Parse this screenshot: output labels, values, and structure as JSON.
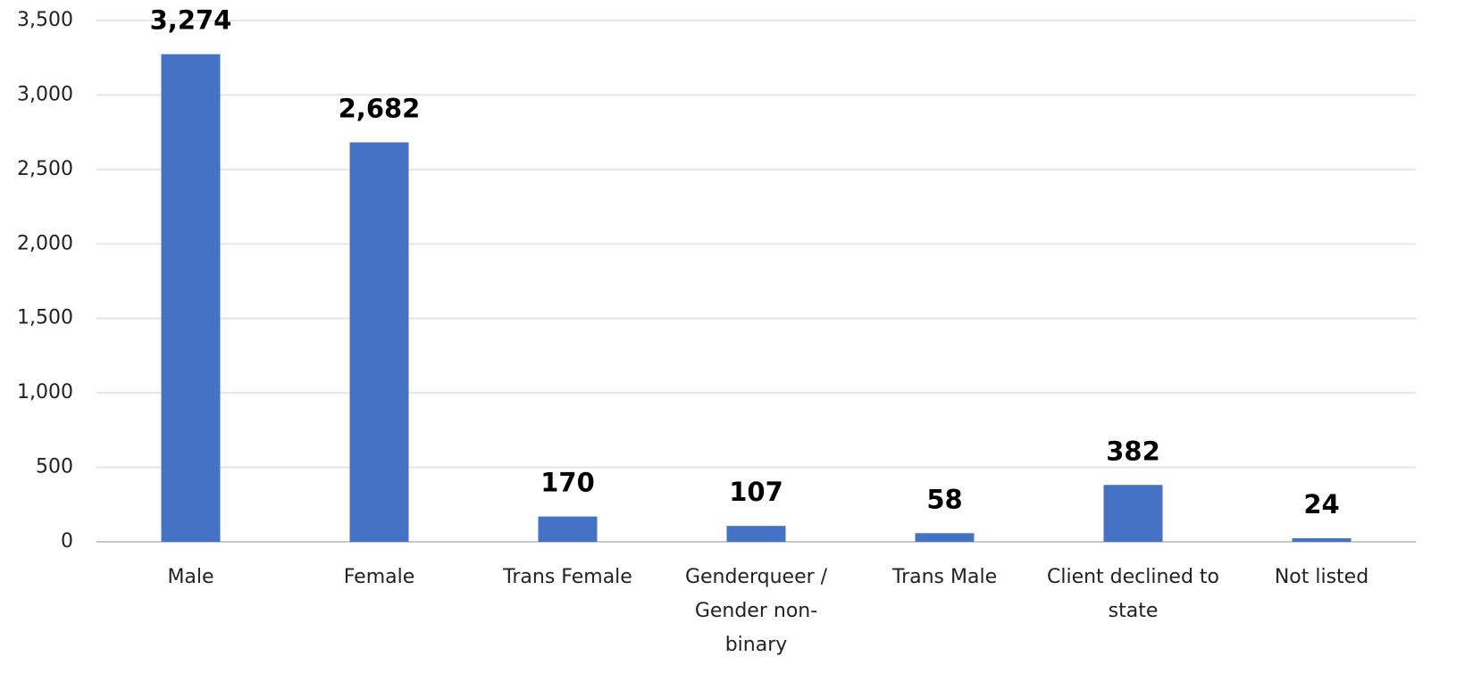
{
  "chart_data": {
    "type": "bar",
    "categories": [
      "Male",
      "Female",
      "Trans Female",
      "Genderqueer / Gender non-binary",
      "Trans Male",
      "Client declined to state",
      "Not listed"
    ],
    "values": [
      3274,
      2682,
      170,
      107,
      58,
      382,
      24
    ],
    "value_labels": [
      "3,274",
      "2,682",
      "170",
      "107",
      "58",
      "382",
      "24"
    ],
    "color": "#4472c4",
    "ylim": [
      0,
      3500
    ],
    "yticks": [
      0,
      500,
      {
        "value": 1000,
        "label": "1,000"
      },
      {
        "value": 1500,
        "label": "1,500"
      },
      {
        "value": 2000,
        "label": "2,000"
      },
      {
        "value": 2500,
        "label": "2,500"
      },
      {
        "value": 3000,
        "label": "3,000"
      },
      {
        "value": 3500,
        "label": "3,500"
      }
    ],
    "grid": true
  }
}
